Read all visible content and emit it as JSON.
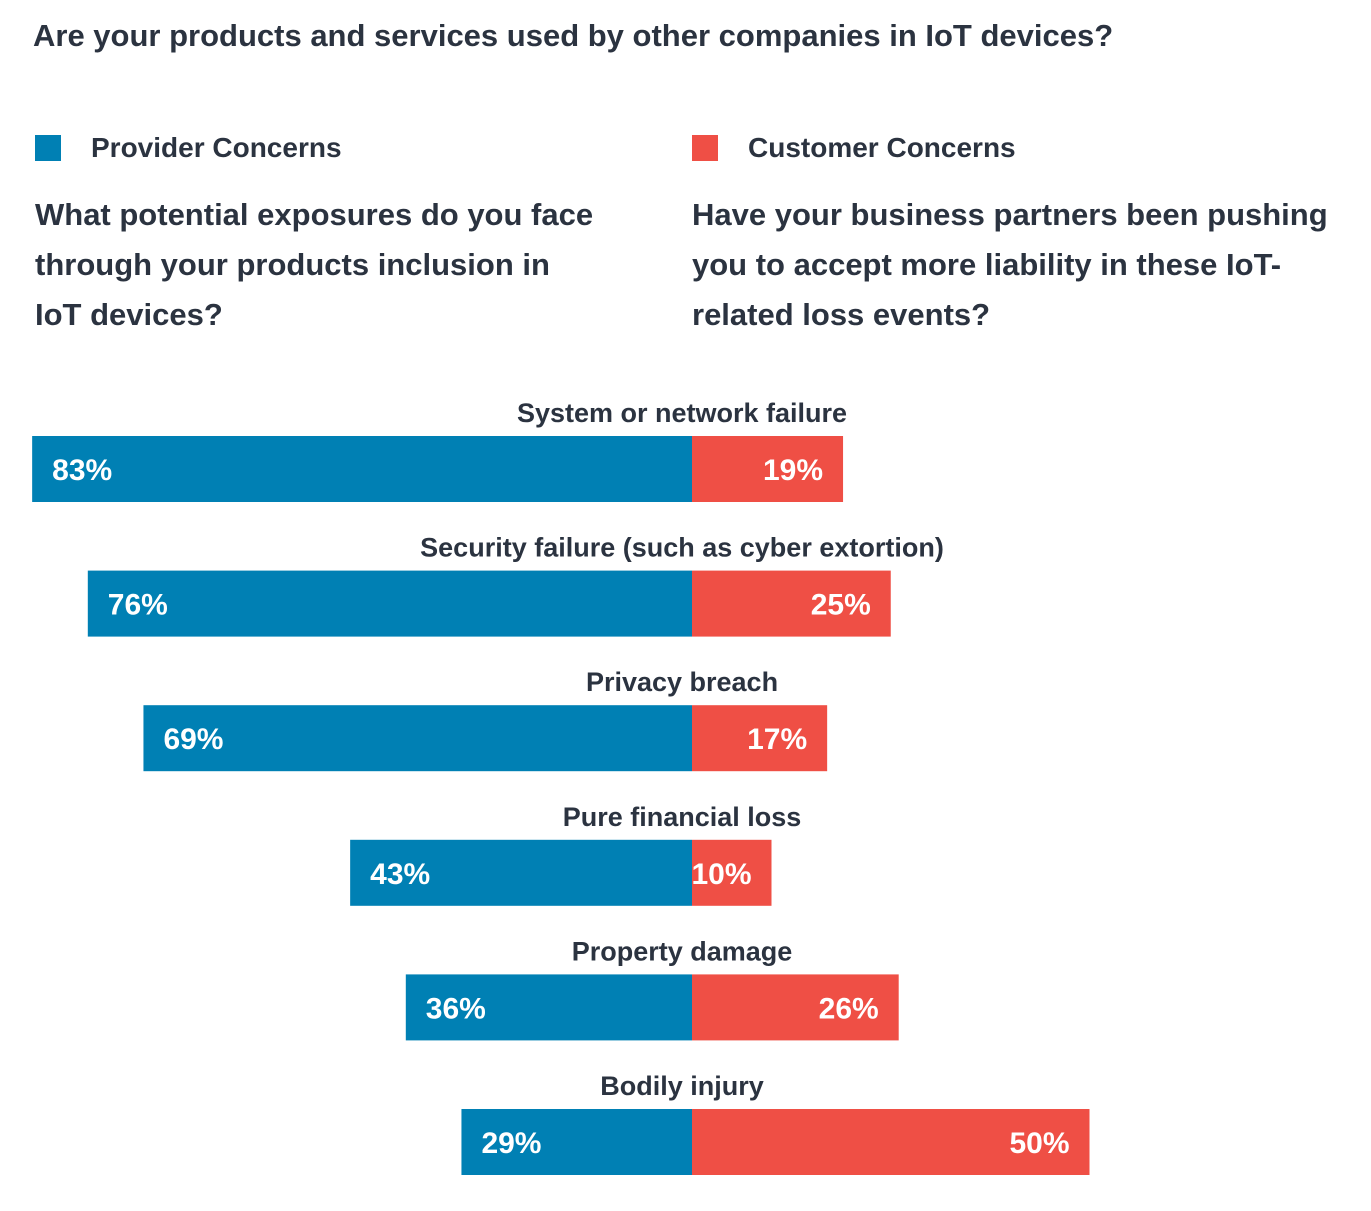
{
  "title": "Are your products and services used by other companies in IoT devices?",
  "legend": {
    "provider": {
      "label": "Provider Concerns",
      "color": "#0080b4"
    },
    "customer": {
      "label": "Customer Concerns",
      "color": "#ef4f45"
    }
  },
  "questions": {
    "provider": "What potential exposures do you face through your products inclusion in IoT devices?",
    "customer": "Have your business partners been pushing you to accept more liability in these IoT-related loss events?"
  },
  "chart_data": {
    "type": "bar",
    "orientation": "horizontal-diverging",
    "categories": [
      "System or network failure",
      "Security failure (such as cyber extortion)",
      "Privacy breach",
      "Pure financial loss",
      "Property damage",
      "Bodily injury"
    ],
    "series": [
      {
        "name": "Provider Concerns",
        "color": "#0080b4",
        "values": [
          83,
          76,
          69,
          43,
          36,
          29
        ],
        "labels": [
          "83%",
          "76%",
          "69%",
          "43%",
          "36%",
          "29%"
        ]
      },
      {
        "name": "Customer Concerns",
        "color": "#ef4f45",
        "values": [
          19,
          25,
          17,
          10,
          26,
          50
        ],
        "labels": [
          "19%",
          "25%",
          "17%",
          "10%",
          "26%",
          "50%"
        ]
      }
    ],
    "unit": "%"
  }
}
